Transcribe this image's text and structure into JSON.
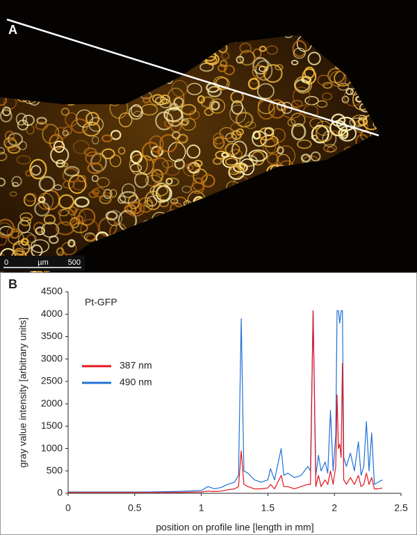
{
  "image_panel": {
    "label": "A",
    "scale_bar": [
      "0",
      "µm",
      "500"
    ]
  },
  "chart_panel_label": "B",
  "chart_data": {
    "type": "line",
    "annotation": "Pt-GFP",
    "xlabel": "position on profile line  [length in mm]",
    "ylabel": "gray value intensity [arbitrary units]",
    "x": [
      0,
      0.2,
      0.4,
      0.6,
      0.8,
      1.0,
      1.05,
      1.1,
      1.15,
      1.2,
      1.25,
      1.28,
      1.3,
      1.32,
      1.35,
      1.4,
      1.45,
      1.5,
      1.52,
      1.55,
      1.6,
      1.62,
      1.65,
      1.7,
      1.75,
      1.8,
      1.82,
      1.84,
      1.86,
      1.88,
      1.9,
      1.93,
      1.95,
      1.97,
      1.99,
      2.01,
      2.02,
      2.03,
      2.04,
      2.05,
      2.06,
      2.07,
      2.09,
      2.12,
      2.15,
      2.18,
      2.2,
      2.22,
      2.24,
      2.26,
      2.28,
      2.3,
      2.33,
      2.36
    ],
    "series": [
      {
        "name": "490 nm",
        "color": "#1f6fd6",
        "values": [
          30,
          30,
          30,
          30,
          40,
          60,
          150,
          100,
          130,
          200,
          250,
          400,
          3900,
          500,
          450,
          300,
          250,
          300,
          550,
          300,
          1000,
          400,
          450,
          350,
          400,
          600,
          500,
          4080,
          400,
          850,
          500,
          700,
          450,
          1850,
          500,
          1300,
          4080,
          4080,
          3800,
          4080,
          4080,
          800,
          600,
          900,
          500,
          1150,
          400,
          600,
          1600,
          500,
          1350,
          200,
          250,
          300
        ]
      },
      {
        "name": "387 nm",
        "color": "#e0141c",
        "values": [
          20,
          20,
          20,
          20,
          20,
          30,
          50,
          40,
          50,
          80,
          100,
          150,
          950,
          200,
          150,
          100,
          100,
          120,
          200,
          100,
          400,
          150,
          150,
          100,
          150,
          200,
          200,
          4080,
          150,
          400,
          150,
          300,
          200,
          500,
          200,
          600,
          2200,
          1000,
          1100,
          800,
          2900,
          300,
          200,
          350,
          200,
          400,
          150,
          200,
          450,
          200,
          350,
          100,
          100,
          120
        ]
      }
    ],
    "legend_order": [
      1,
      0
    ],
    "legend": "upper left",
    "grid": false,
    "xlim": [
      0,
      2.5
    ],
    "xticks": [
      0,
      0.5,
      1,
      1.5,
      2,
      2.5
    ],
    "ylim": [
      0,
      4500
    ],
    "yticks": [
      0,
      500,
      1000,
      1500,
      2000,
      2500,
      3000,
      3500,
      4000,
      4500
    ]
  }
}
